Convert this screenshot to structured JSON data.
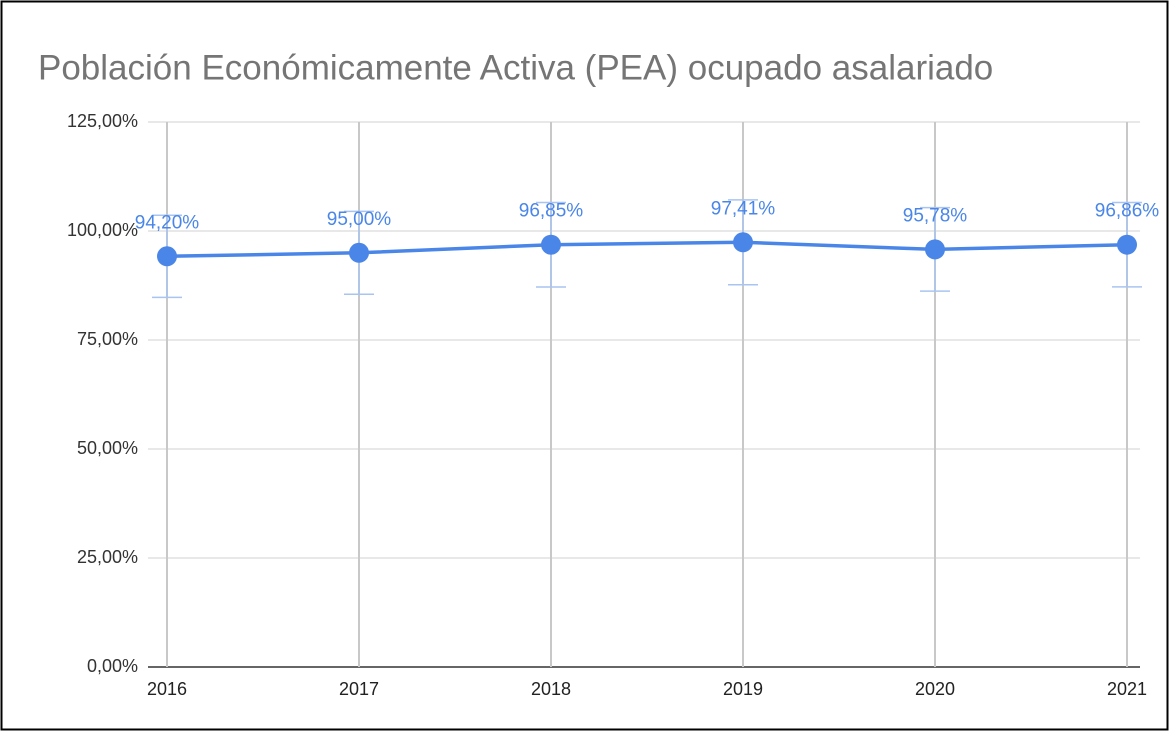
{
  "chart_data": {
    "type": "line",
    "title": "Población Económicamente Activa (PEA) ocupado asalariado",
    "categories": [
      "2016",
      "2017",
      "2018",
      "2019",
      "2020",
      "2021"
    ],
    "series": [
      {
        "name": "PEA ocupado asalariado",
        "color": "#4a86e8",
        "values": [
          94.2,
          95.0,
          96.85,
          97.41,
          95.78,
          96.86
        ],
        "value_labels": [
          "94,20%",
          "95,00%",
          "96,85%",
          "97,41%",
          "95,78%",
          "96,86%"
        ],
        "errors": [
          9.42,
          9.5,
          9.685,
          9.741,
          9.578,
          9.686
        ],
        "error_color": "#a9c4f0"
      }
    ],
    "ylim": [
      0,
      125
    ],
    "yticks": [
      {
        "value": 0,
        "label": "0,00%"
      },
      {
        "value": 25,
        "label": "25,00%"
      },
      {
        "value": 50,
        "label": "50,00%"
      },
      {
        "value": 75,
        "label": "75,00%"
      },
      {
        "value": 100,
        "label": "100,00%"
      },
      {
        "value": 125,
        "label": "125,00%"
      }
    ],
    "grid": true
  }
}
